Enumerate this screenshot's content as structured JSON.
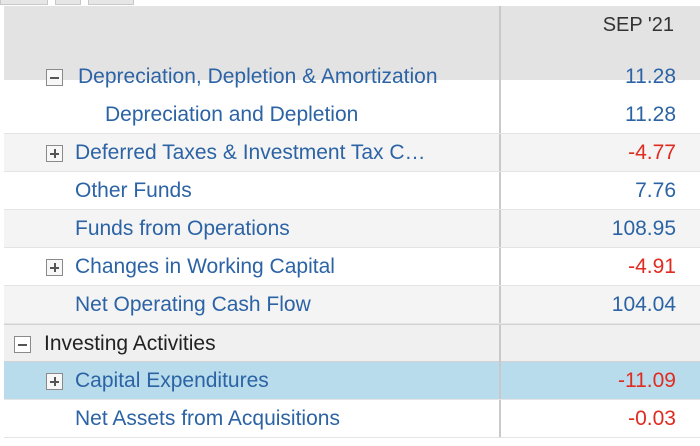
{
  "header": {
    "column_title": "SEP '21"
  },
  "rows": [
    {
      "label": "Depreciation, Depletion & Amortization",
      "value": "11.28",
      "negative": false,
      "expandable": true,
      "indent": 1,
      "partial": true
    },
    {
      "label": "Depreciation and Depletion",
      "value": "11.28",
      "negative": false,
      "expandable": false,
      "indent": 2
    },
    {
      "label": "Deferred Taxes & Investment Tax C…",
      "value": "-4.77",
      "negative": true,
      "expandable": true,
      "indent": 1
    },
    {
      "label": "Other Funds",
      "value": "7.76",
      "negative": false,
      "expandable": false,
      "indent": 1
    },
    {
      "label": "Funds from Operations",
      "value": "108.95",
      "negative": false,
      "expandable": false,
      "indent": 1
    },
    {
      "label": "Changes in Working Capital",
      "value": "-4.91",
      "negative": true,
      "expandable": true,
      "indent": 1
    },
    {
      "label": "Net Operating Cash Flow",
      "value": "104.04",
      "negative": false,
      "expandable": false,
      "indent": 1
    },
    {
      "label": "Investing Activities",
      "value": "",
      "negative": false,
      "expandable": true,
      "indent": 0,
      "section": true
    },
    {
      "label": "Capital Expenditures",
      "value": "-11.09",
      "negative": true,
      "expandable": true,
      "indent": 1,
      "selected": true
    },
    {
      "label": "Net Assets from Acquisitions",
      "value": "-0.03",
      "negative": true,
      "expandable": false,
      "indent": 1
    }
  ],
  "colors": {
    "link_text": "#2c63a5",
    "negative": "#e02b20",
    "selected_row": "#b8dceb",
    "header_bg": "#e3e3e3"
  }
}
